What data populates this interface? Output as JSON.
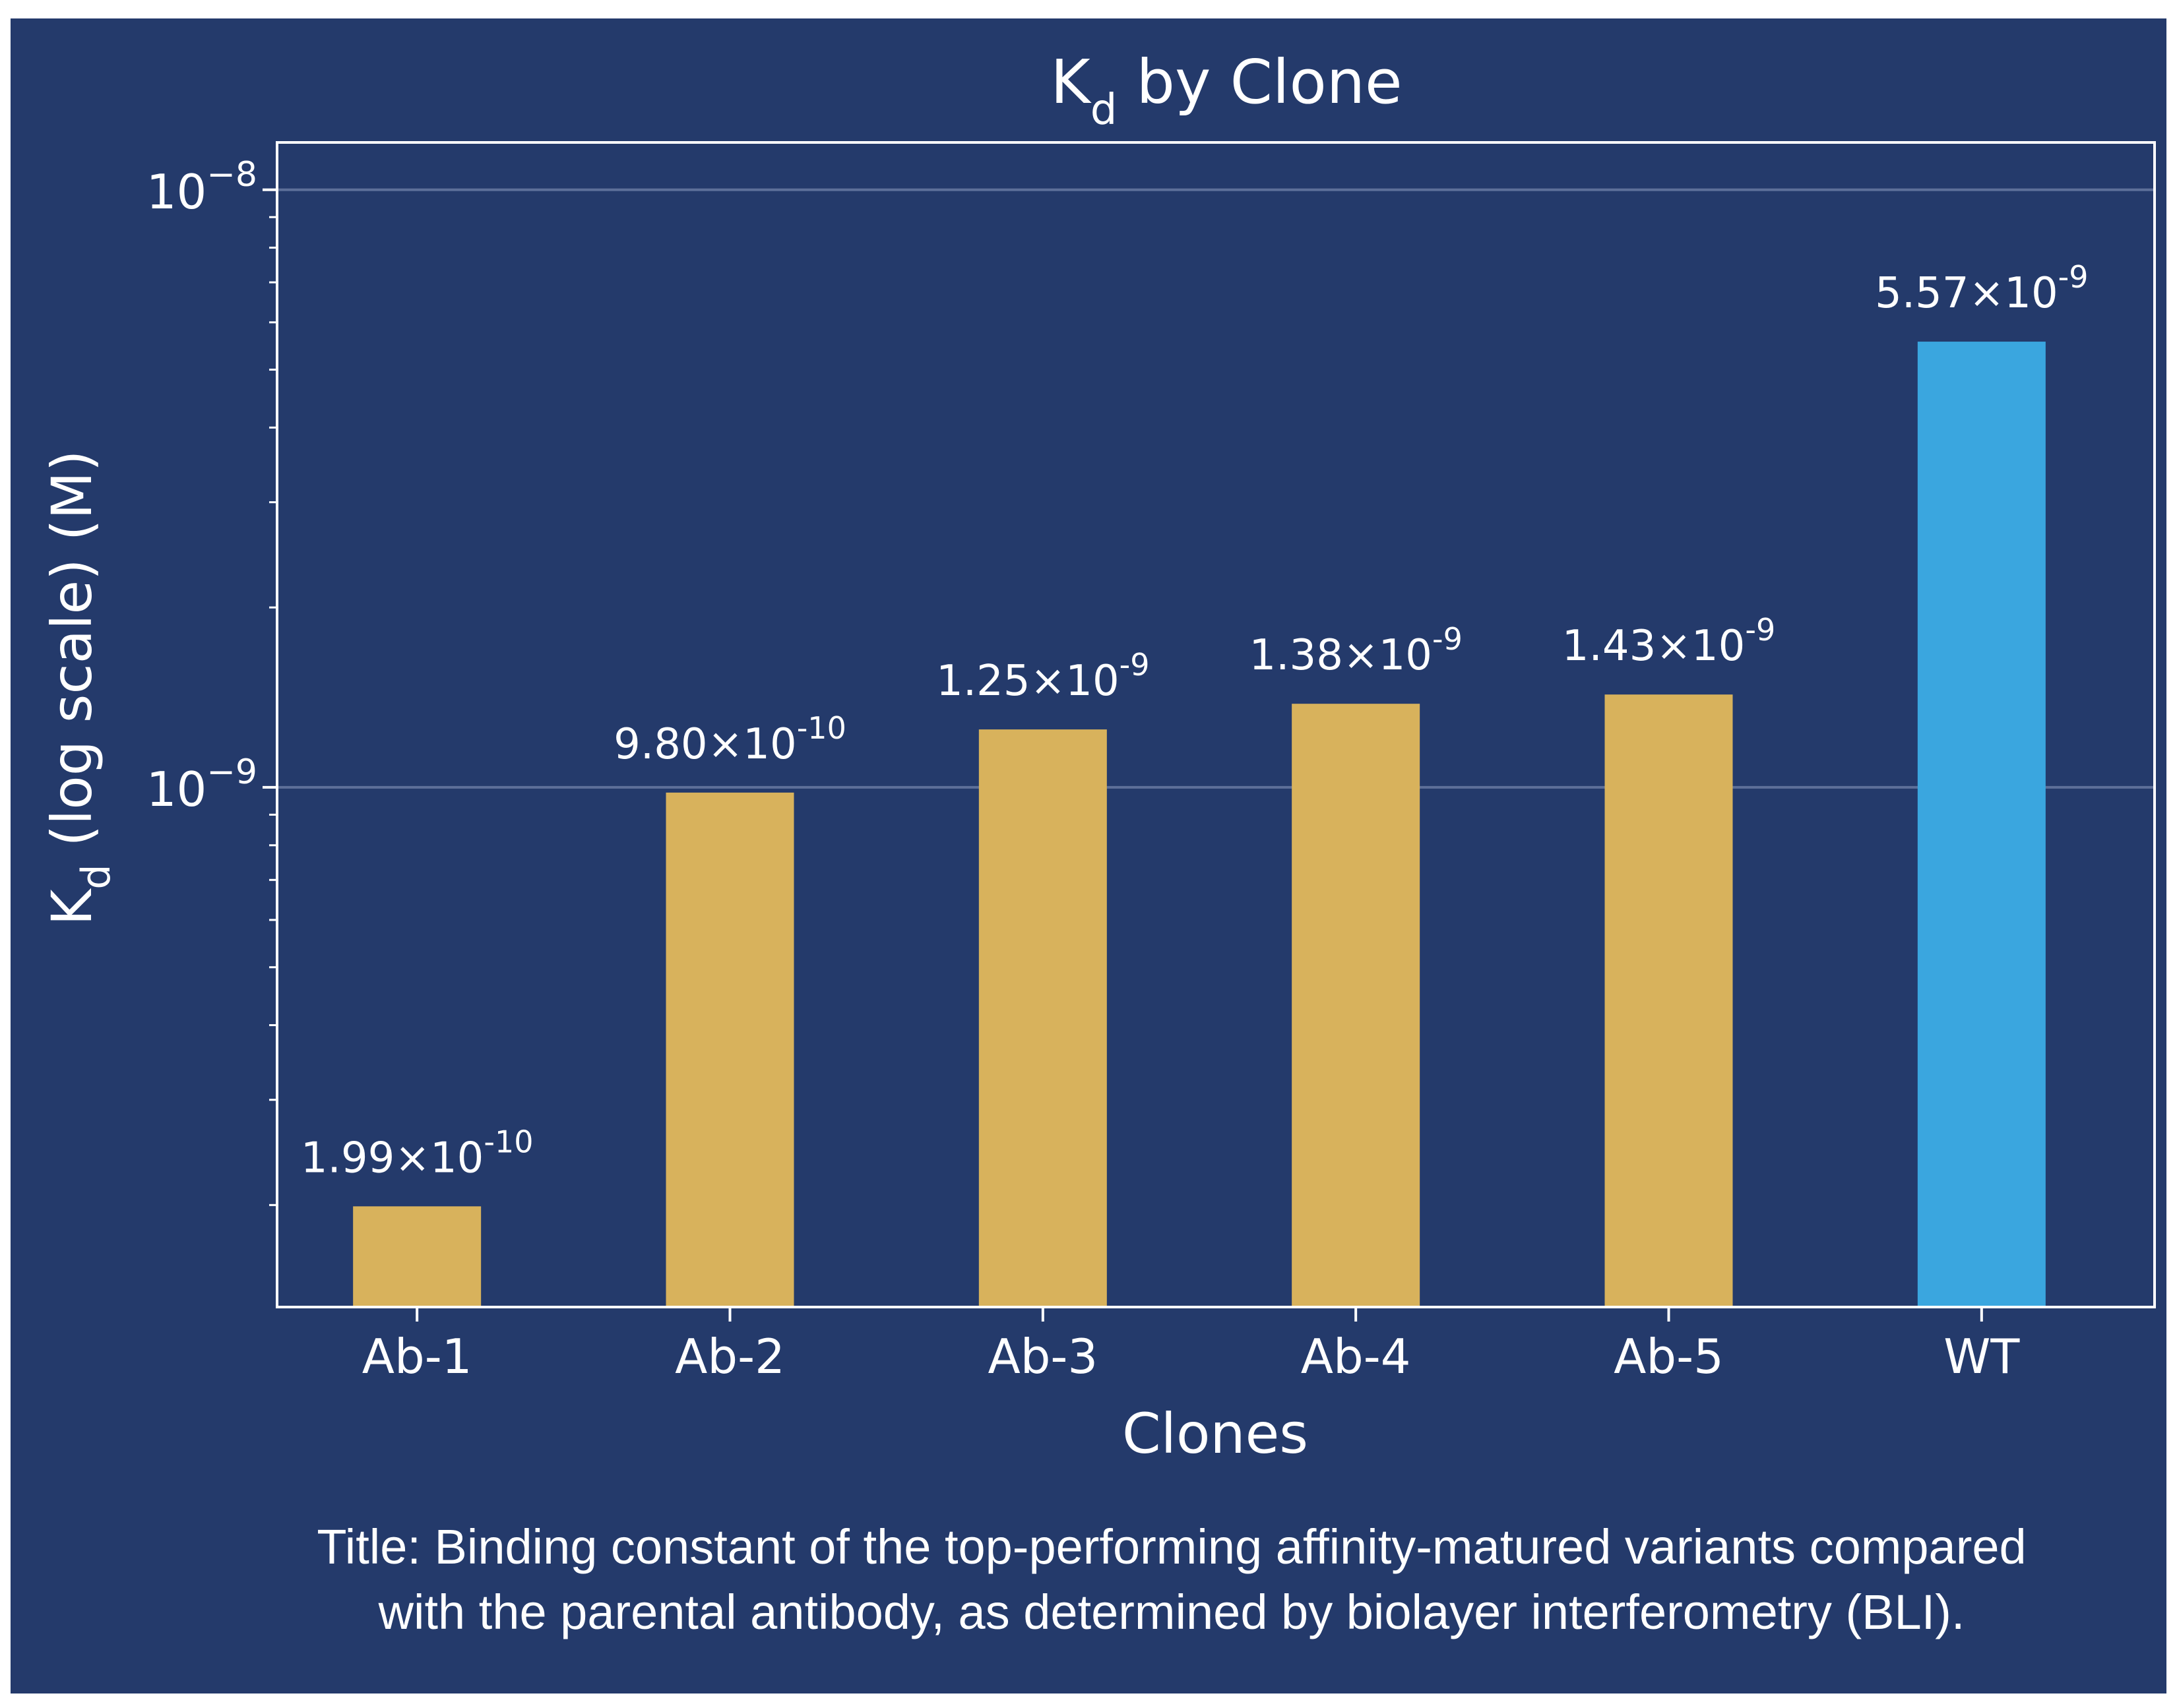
{
  "colors": {
    "background": "#243a6b",
    "bar": "#d8b25c",
    "highlight_bar": "#3aa6df",
    "axis": "#ffffff",
    "grid": "#5d6f99"
  },
  "chart_data": {
    "type": "bar",
    "title_main": "K",
    "title_sub": "d",
    "title_rest": " by Clone",
    "xlabel": "Clones",
    "ylabel_main": "K",
    "ylabel_sub": "d",
    "ylabel_rest": " (log scale) (M)",
    "yscale": "log",
    "ylim": [
      1.35e-10,
      1.2e-08
    ],
    "grid": "major y only",
    "categories": [
      "Ab-1",
      "Ab-2",
      "Ab-3",
      "Ab-4",
      "Ab-5",
      "WT"
    ],
    "values": [
      1.99e-10,
      9.8e-10,
      1.25e-09,
      1.38e-09,
      1.43e-09,
      5.57e-09
    ],
    "highlight": "WT",
    "value_labels": [
      {
        "mantissa": "1.99×10",
        "exp": "-10"
      },
      {
        "mantissa": "9.80×10",
        "exp": "-10"
      },
      {
        "mantissa": "1.25×10",
        "exp": "-9"
      },
      {
        "mantissa": "1.38×10",
        "exp": "-9"
      },
      {
        "mantissa": "1.43×10",
        "exp": "-9"
      },
      {
        "mantissa": "5.57×10",
        "exp": "-9"
      }
    ],
    "y_ticks": [
      {
        "value": 1e-08,
        "base": "10",
        "exp": "−8"
      },
      {
        "value": 1e-09,
        "base": "10",
        "exp": "−9"
      }
    ]
  },
  "caption": {
    "line1": "Title: Binding constant of the top-performing affinity-matured variants compared",
    "line2": "with the parental antibody, as determined by biolayer interferometry (BLI)."
  }
}
